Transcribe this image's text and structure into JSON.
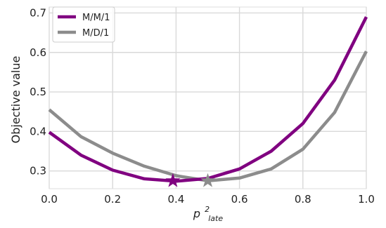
{
  "chart_data": {
    "type": "line",
    "xlabel_base": "p",
    "xlabel_sup": "2",
    "xlabel_sub": "late",
    "ylabel": "Objective value",
    "xlim": [
      0.0,
      1.0
    ],
    "ylim": [
      0.255,
      0.715
    ],
    "x_ticks": [
      "0.0",
      "0.2",
      "0.4",
      "0.6",
      "0.8",
      "1.0"
    ],
    "x_tick_values": [
      0.0,
      0.2,
      0.4,
      0.6,
      0.8,
      1.0
    ],
    "y_ticks": [
      "0.3",
      "0.4",
      "0.5",
      "0.6",
      "0.7"
    ],
    "y_tick_values": [
      0.3,
      0.4,
      0.5,
      0.6,
      0.7
    ],
    "grid": true,
    "legend_position": "top-left",
    "x": [
      0.0,
      0.1,
      0.2,
      0.3,
      0.4,
      0.5,
      0.6,
      0.7,
      0.8,
      0.9,
      1.0
    ],
    "series": [
      {
        "name": "M/M/1",
        "color": "#800080",
        "values": [
          0.398,
          0.34,
          0.302,
          0.28,
          0.274,
          0.281,
          0.305,
          0.35,
          0.42,
          0.53,
          0.69
        ],
        "min_marker": {
          "x": 0.39,
          "y": 0.275,
          "shape": "star"
        }
      },
      {
        "name": "M/D/1",
        "color": "#8c8c8c",
        "values": [
          0.455,
          0.387,
          0.345,
          0.312,
          0.288,
          0.275,
          0.282,
          0.305,
          0.355,
          0.448,
          0.603
        ],
        "min_marker": {
          "x": 0.5,
          "y": 0.275,
          "shape": "star"
        }
      }
    ]
  }
}
